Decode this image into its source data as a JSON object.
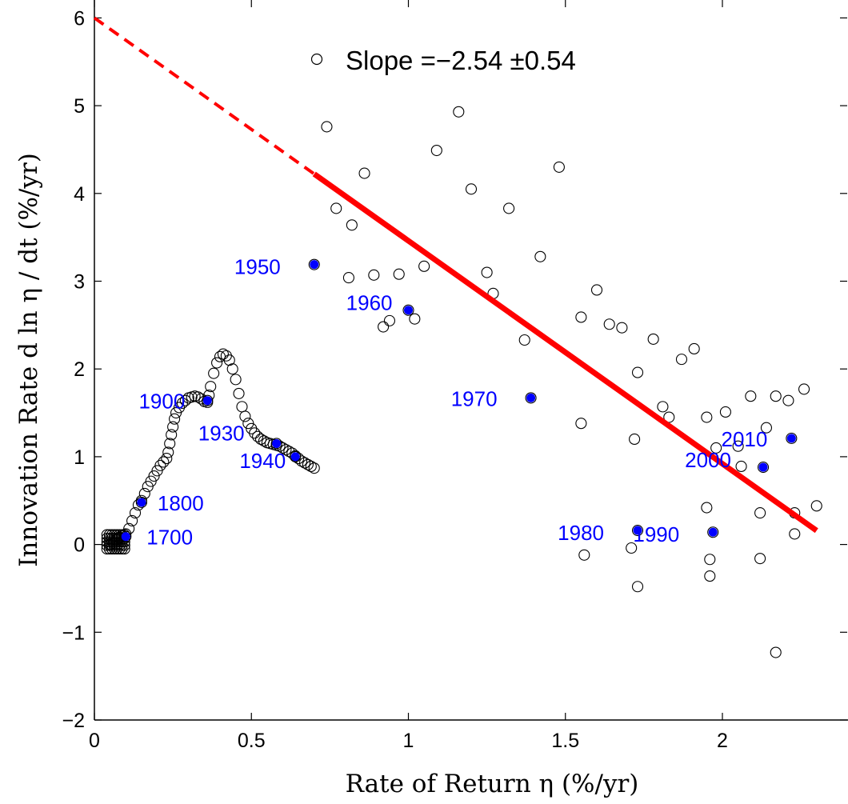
{
  "chart_data": {
    "type": "scatter",
    "xlabel": "Rate of Return η (%/yr)",
    "ylabel": "Innovation Rate d ln η / dt (%/yr)",
    "xlim": [
      0,
      2.4
    ],
    "ylim": [
      -2,
      6
    ],
    "xticks": [
      0,
      0.5,
      1,
      1.5,
      2
    ],
    "xtick_labels": [
      "0",
      "0.5",
      "1",
      "1.5",
      "2"
    ],
    "yticks": [
      -2,
      -1,
      0,
      1,
      2,
      3,
      4,
      5,
      6
    ],
    "ytick_labels": [
      "−2",
      "−1",
      "0",
      "1",
      "2",
      "3",
      "4",
      "5",
      "6"
    ],
    "grid": false,
    "legend": {
      "label": "Slope =−2.54 ±0.54",
      "marker": "open-circle",
      "placement": "top"
    },
    "fit_line": {
      "slope": -2.54,
      "slope_err": 0.54,
      "intercept": 6.0,
      "solid_range": [
        0.7,
        2.3
      ],
      "dashed_range": [
        0,
        0.7
      ],
      "color": "#ff0000"
    },
    "series": [
      {
        "marker": "open-circle",
        "scatter_points": [
          [
            0.74,
            4.76
          ],
          [
            0.77,
            3.83
          ],
          [
            0.81,
            3.04
          ],
          [
            0.82,
            3.64
          ],
          [
            0.86,
            4.23
          ],
          [
            0.89,
            3.07
          ],
          [
            0.92,
            2.48
          ],
          [
            0.94,
            2.55
          ],
          [
            0.97,
            3.08
          ],
          [
            1.02,
            2.57
          ],
          [
            1.05,
            3.17
          ],
          [
            1.09,
            4.49
          ],
          [
            1.2,
            4.05
          ],
          [
            1.16,
            4.93
          ],
          [
            1.25,
            3.1
          ],
          [
            1.27,
            2.86
          ],
          [
            1.32,
            3.83
          ],
          [
            1.37,
            2.33
          ],
          [
            1.42,
            3.28
          ],
          [
            1.48,
            4.3
          ],
          [
            1.55,
            2.59
          ],
          [
            1.55,
            1.38
          ],
          [
            1.56,
            -0.12
          ],
          [
            1.6,
            2.9
          ],
          [
            1.64,
            2.51
          ],
          [
            1.68,
            2.47
          ],
          [
            1.71,
            -0.04
          ],
          [
            1.72,
            1.2
          ],
          [
            1.73,
            1.96
          ],
          [
            1.73,
            -0.48
          ],
          [
            1.78,
            2.34
          ],
          [
            1.81,
            1.57
          ],
          [
            1.83,
            1.45
          ],
          [
            1.87,
            2.11
          ],
          [
            1.91,
            2.23
          ],
          [
            1.95,
            1.45
          ],
          [
            1.95,
            0.42
          ],
          [
            1.96,
            -0.17
          ],
          [
            1.96,
            -0.36
          ],
          [
            1.98,
            1.1
          ],
          [
            2.01,
            1.51
          ],
          [
            2.05,
            1.12
          ],
          [
            2.06,
            0.89
          ],
          [
            2.09,
            1.69
          ],
          [
            2.12,
            0.36
          ],
          [
            2.12,
            -0.16
          ],
          [
            2.14,
            1.33
          ],
          [
            2.17,
            -1.23
          ],
          [
            2.17,
            1.69
          ],
          [
            2.21,
            1.64
          ],
          [
            2.23,
            0.36
          ],
          [
            2.23,
            0.12
          ],
          [
            2.26,
            1.77
          ],
          [
            2.3,
            0.44
          ]
        ],
        "early_curve": [
          [
            0.05,
            0.0
          ],
          [
            0.06,
            0.02
          ],
          [
            0.07,
            0.05
          ],
          [
            0.08,
            0.08
          ],
          [
            0.09,
            0.1
          ],
          [
            0.1,
            0.12
          ],
          [
            0.11,
            0.18
          ],
          [
            0.12,
            0.27
          ],
          [
            0.13,
            0.36
          ],
          [
            0.14,
            0.45
          ],
          [
            0.15,
            0.5
          ],
          [
            0.16,
            0.58
          ],
          [
            0.17,
            0.66
          ],
          [
            0.18,
            0.72
          ],
          [
            0.19,
            0.78
          ],
          [
            0.2,
            0.84
          ],
          [
            0.21,
            0.9
          ],
          [
            0.22,
            0.94
          ],
          [
            0.23,
            0.98
          ],
          [
            0.235,
            1.05
          ],
          [
            0.24,
            1.15
          ],
          [
            0.245,
            1.25
          ],
          [
            0.25,
            1.34
          ],
          [
            0.255,
            1.43
          ],
          [
            0.26,
            1.5
          ],
          [
            0.27,
            1.56
          ],
          [
            0.28,
            1.61
          ],
          [
            0.29,
            1.64
          ],
          [
            0.3,
            1.67
          ],
          [
            0.31,
            1.68
          ],
          [
            0.32,
            1.69
          ],
          [
            0.33,
            1.68
          ],
          [
            0.34,
            1.66
          ],
          [
            0.35,
            1.63
          ],
          [
            0.36,
            1.62
          ],
          [
            0.365,
            1.7
          ],
          [
            0.37,
            1.8
          ],
          [
            0.38,
            1.95
          ],
          [
            0.39,
            2.07
          ],
          [
            0.4,
            2.14
          ],
          [
            0.41,
            2.17
          ],
          [
            0.42,
            2.15
          ],
          [
            0.43,
            2.1
          ],
          [
            0.44,
            2.0
          ],
          [
            0.45,
            1.88
          ],
          [
            0.46,
            1.72
          ],
          [
            0.47,
            1.57
          ],
          [
            0.48,
            1.46
          ],
          [
            0.49,
            1.38
          ],
          [
            0.5,
            1.32
          ],
          [
            0.51,
            1.27
          ],
          [
            0.52,
            1.23
          ],
          [
            0.53,
            1.2
          ],
          [
            0.54,
            1.18
          ],
          [
            0.55,
            1.16
          ],
          [
            0.56,
            1.15
          ],
          [
            0.57,
            1.14
          ],
          [
            0.58,
            1.13
          ],
          [
            0.59,
            1.12
          ],
          [
            0.6,
            1.1
          ],
          [
            0.61,
            1.08
          ],
          [
            0.62,
            1.06
          ],
          [
            0.63,
            1.04
          ],
          [
            0.64,
            1.01
          ],
          [
            0.65,
            0.98
          ],
          [
            0.66,
            0.95
          ],
          [
            0.67,
            0.93
          ],
          [
            0.68,
            0.91
          ],
          [
            0.69,
            0.89
          ],
          [
            0.7,
            0.87
          ]
        ]
      },
      {
        "marker": "filled-circle",
        "color": "#0000ff",
        "points": [
          {
            "x": 0.1,
            "y": 0.09,
            "label": "1700"
          },
          {
            "x": 0.15,
            "y": 0.48,
            "label": "1800"
          },
          {
            "x": 0.36,
            "y": 1.64,
            "label": "1900"
          },
          {
            "x": 0.58,
            "y": 1.15,
            "label": "1930"
          },
          {
            "x": 0.64,
            "y": 1.0,
            "label": "1940"
          },
          {
            "x": 0.7,
            "y": 3.19,
            "label": "1950"
          },
          {
            "x": 1.0,
            "y": 2.67,
            "label": "1960"
          },
          {
            "x": 1.39,
            "y": 1.67,
            "label": "1970"
          },
          {
            "x": 1.73,
            "y": 0.16,
            "label": "1980"
          },
          {
            "x": 1.97,
            "y": 0.14,
            "label": "1990"
          },
          {
            "x": 2.13,
            "y": 0.88,
            "label": "2000"
          },
          {
            "x": 2.22,
            "y": 1.21,
            "label": "2010"
          }
        ]
      }
    ]
  }
}
